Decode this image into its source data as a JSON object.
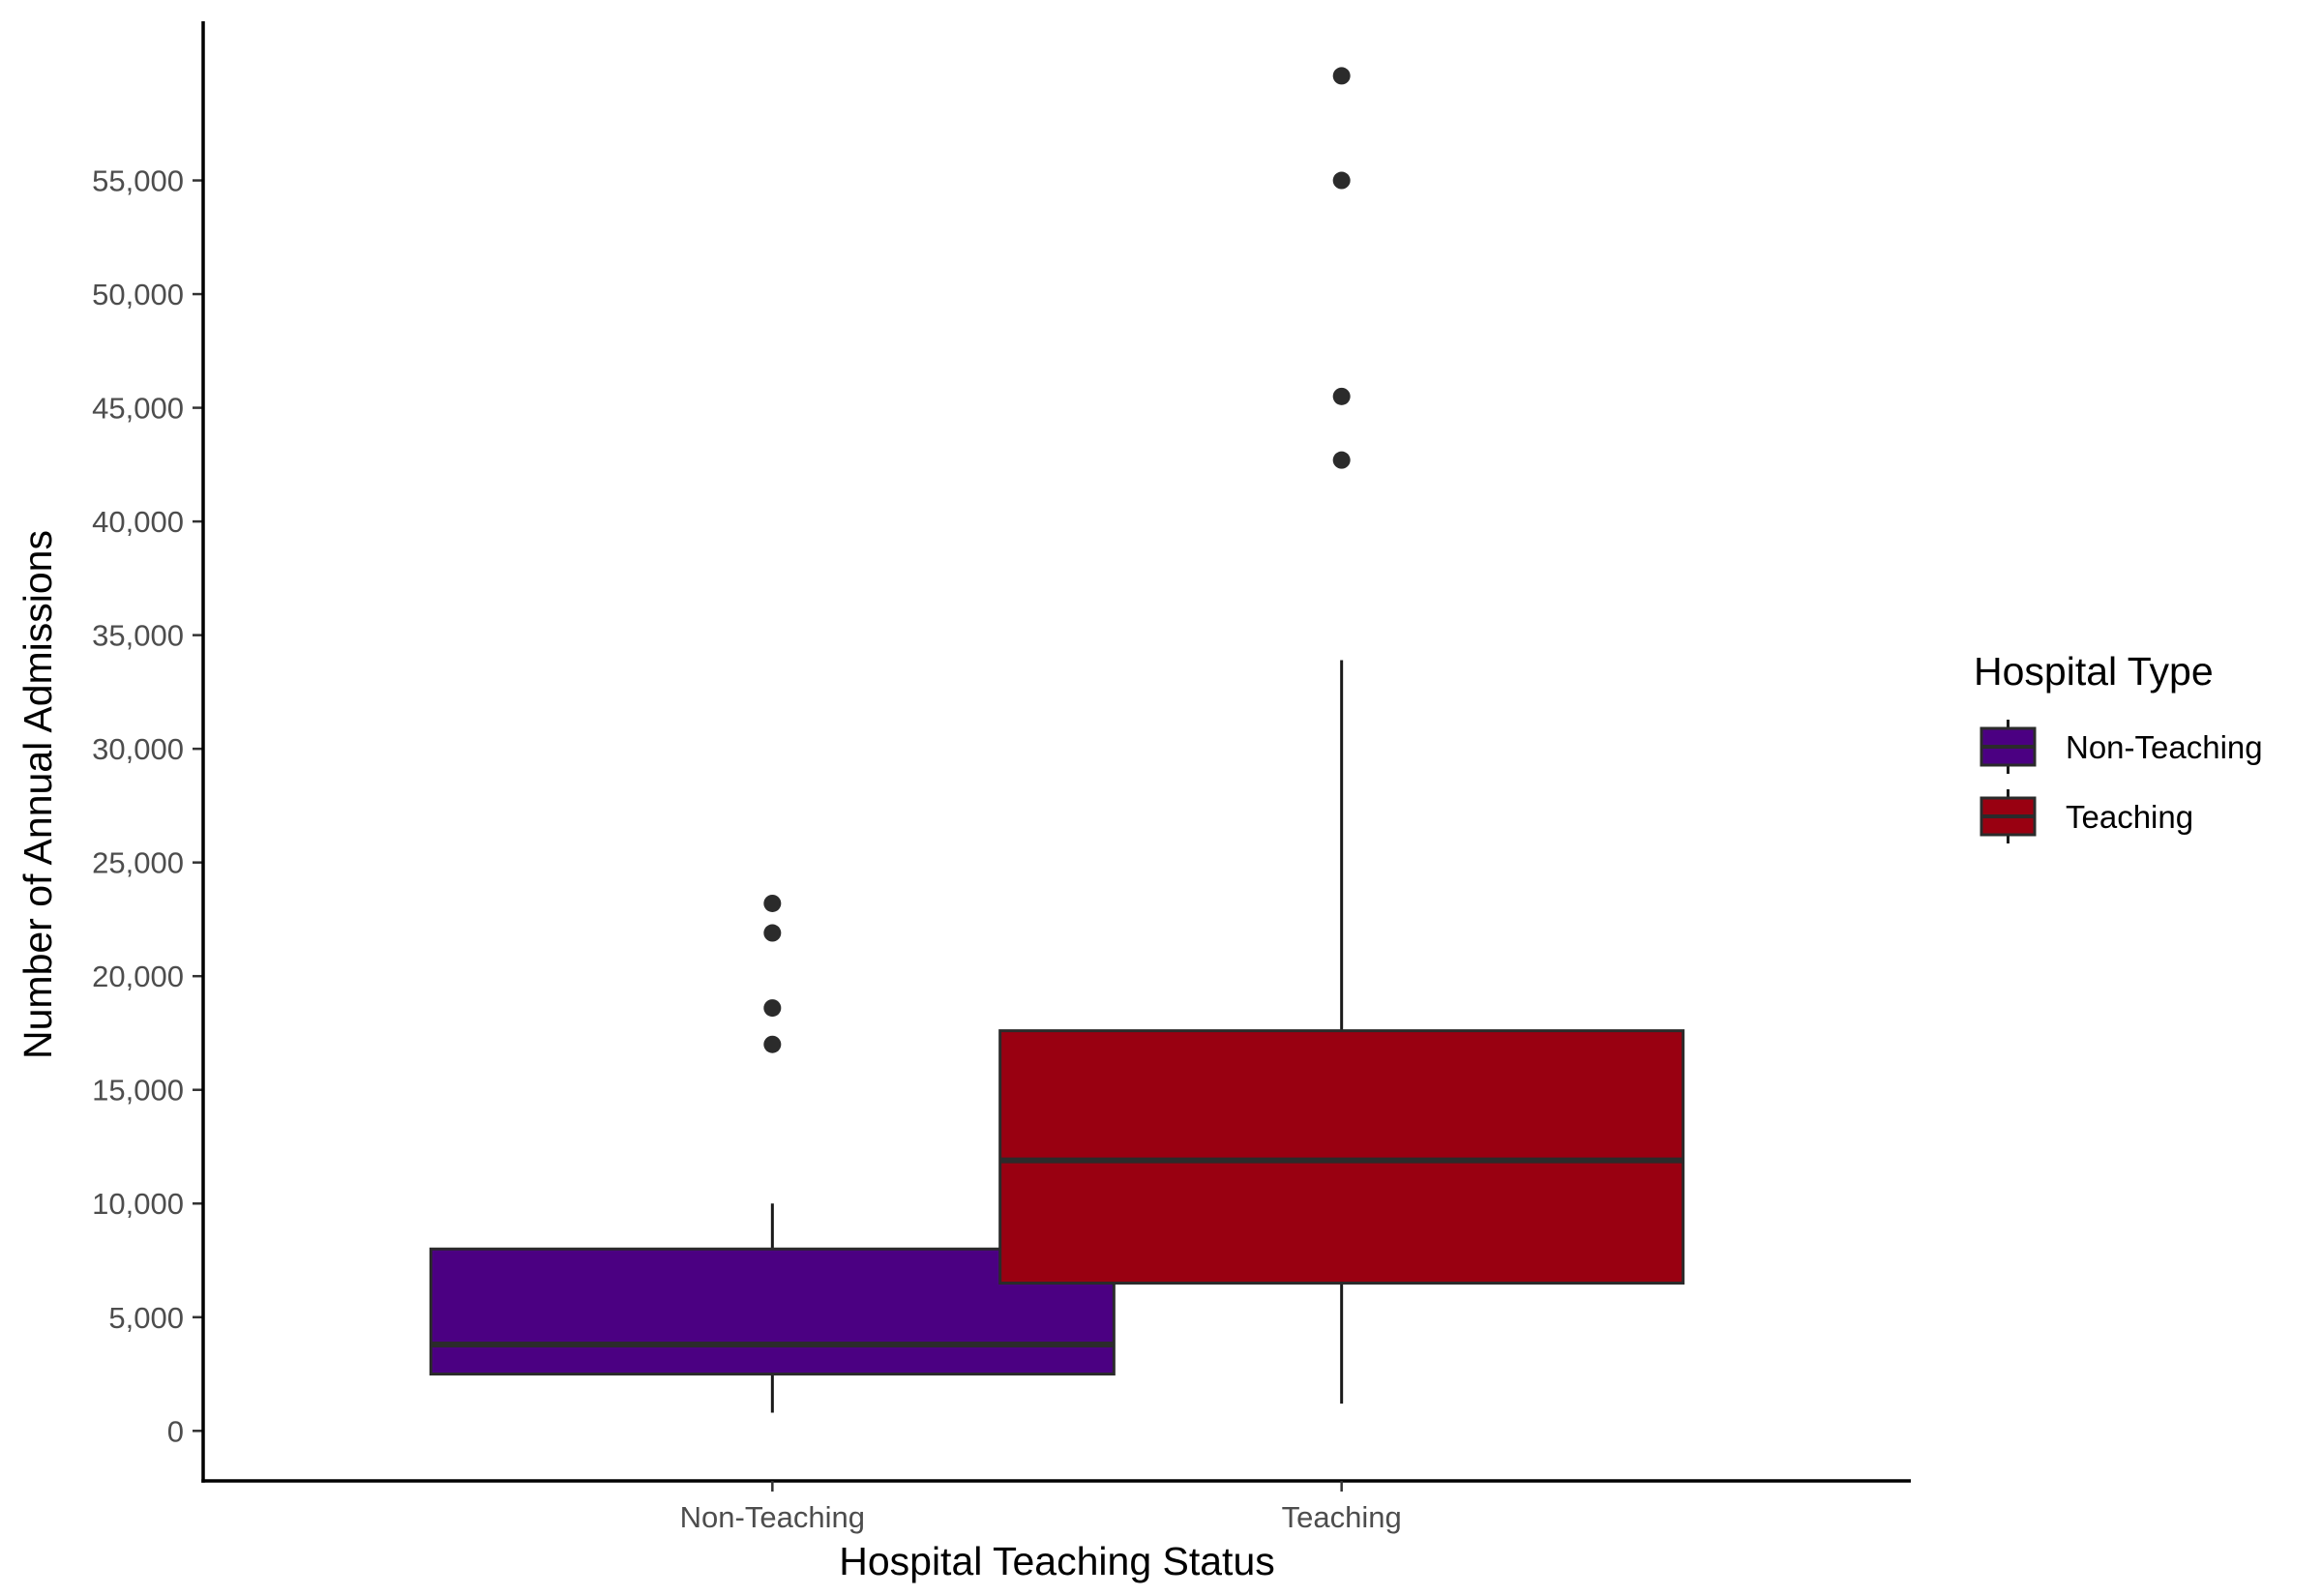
{
  "chart_data": {
    "type": "box",
    "title": "",
    "xlabel": "Hospital Teaching Status",
    "ylabel": "Number of Annual Admissions",
    "categories": [
      "Non-Teaching",
      "Teaching"
    ],
    "ylim": [
      -2200,
      62000
    ],
    "yticks": [
      0,
      5000,
      10000,
      15000,
      20000,
      25000,
      30000,
      35000,
      40000,
      45000,
      50000,
      55000
    ],
    "ytick_labels": [
      "0",
      "5,000",
      "10,000",
      "15,000",
      "20,000",
      "25,000",
      "30,000",
      "35,000",
      "40,000",
      "45,000",
      "50,000",
      "55,000"
    ],
    "grid": false,
    "legend": {
      "title": "Hospital Type",
      "position": "right"
    },
    "series": [
      {
        "name": "Non-Teaching",
        "color": "#4b0082",
        "whisker_low": 800,
        "q1": 2500,
        "median": 3800,
        "q3": 8000,
        "whisker_high": 10000,
        "outliers": [
          17000,
          18600,
          21900,
          23200
        ]
      },
      {
        "name": "Teaching",
        "color": "#990011",
        "whisker_low": 1200,
        "q1": 6500,
        "median": 11900,
        "q3": 17600,
        "whisker_high": 33900,
        "outliers": [
          42700,
          45500,
          55000,
          59600
        ]
      }
    ]
  }
}
